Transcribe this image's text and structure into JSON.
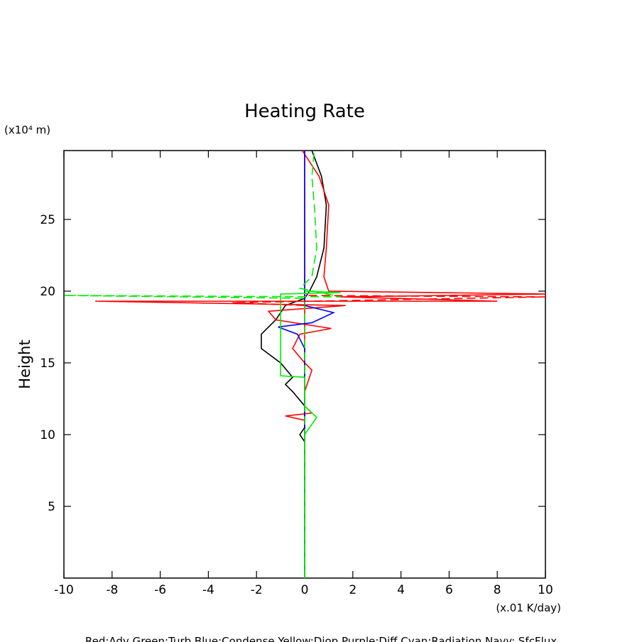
{
  "chart_data": {
    "type": "line",
    "title": "Heating Rate",
    "y_label": "Height",
    "y_unit": "(x10⁴ m)",
    "x_unit": "(x.01 K/day)",
    "footer": "Red:Adv  Green:Turb  Blue:Condense  Yellow:Diop  Purple:Diff  Cyan:Radiation  Navy: SfcFlux",
    "xlim": [
      -10,
      10
    ],
    "ylim": [
      0,
      29.8
    ],
    "xticks": [
      -10,
      -8,
      -6,
      -4,
      -2,
      0,
      2,
      4,
      6,
      8,
      10
    ],
    "yticks": [
      5,
      10,
      15,
      20,
      25
    ],
    "series": [
      {
        "color": "#ff0000",
        "dash": false,
        "x": [
          0,
          0
        ],
        "y": [
          0,
          29.8
        ]
      },
      {
        "color": "#000000",
        "dash": false,
        "x": [
          0,
          0,
          -0.2,
          0,
          0,
          -0.5,
          -0.8,
          -0.5,
          -1,
          -1.8,
          -1.8,
          -1.2,
          -0.8,
          0,
          0.2,
          0.5,
          0.8,
          0.9,
          0.7,
          0.3
        ],
        "y": [
          0,
          9.5,
          10,
          10.5,
          12,
          13,
          13.5,
          14,
          15,
          16,
          17,
          18,
          19,
          19.5,
          20,
          21,
          23,
          26,
          28,
          29.8
        ]
      },
      {
        "color": "#ff0000",
        "dash": false,
        "x": [
          0,
          0,
          -0.8,
          0.3,
          0,
          0,
          0.3,
          0,
          -0.5,
          -0.2,
          1.1,
          -1.2,
          -1.5,
          1.7,
          -8.7,
          8,
          1.5,
          10,
          1,
          0.8,
          0.9,
          1,
          0.6,
          -0.1
        ],
        "y": [
          4,
          11,
          11.3,
          11.5,
          12,
          13,
          14.5,
          15,
          16,
          17,
          17.4,
          18,
          18.6,
          19,
          19.3,
          19.3,
          19.6,
          19.8,
          20,
          21,
          23,
          26,
          28,
          29.8
        ]
      },
      {
        "color": "#0000ff",
        "dash": false,
        "x": [
          0,
          0,
          -0.3,
          -1.1,
          0.3,
          1.2,
          0,
          0
        ],
        "y": [
          0,
          16,
          17,
          17.5,
          17.8,
          18.5,
          19,
          29.8
        ]
      },
      {
        "color": "#00ee00",
        "dash": false,
        "x": [
          0,
          0,
          0.5,
          0,
          0,
          -1,
          -1,
          1.5,
          0
        ],
        "y": [
          0,
          10,
          11.2,
          12,
          14,
          14.1,
          19.8,
          19.9,
          20
        ]
      },
      {
        "color": "#00ee00",
        "dash": true,
        "x": [
          0,
          0,
          -10,
          1.5,
          -0.2,
          0.3,
          0.5,
          0.4,
          0.3,
          0.4
        ],
        "y": [
          0,
          19.5,
          19.7,
          19.6,
          20.2,
          21,
          23,
          26,
          28,
          29.8
        ]
      },
      {
        "color": "#ff0000",
        "dash": true,
        "x": [
          0,
          -3,
          10,
          0
        ],
        "y": [
          19,
          19.2,
          19.6,
          19.7
        ]
      }
    ]
  }
}
